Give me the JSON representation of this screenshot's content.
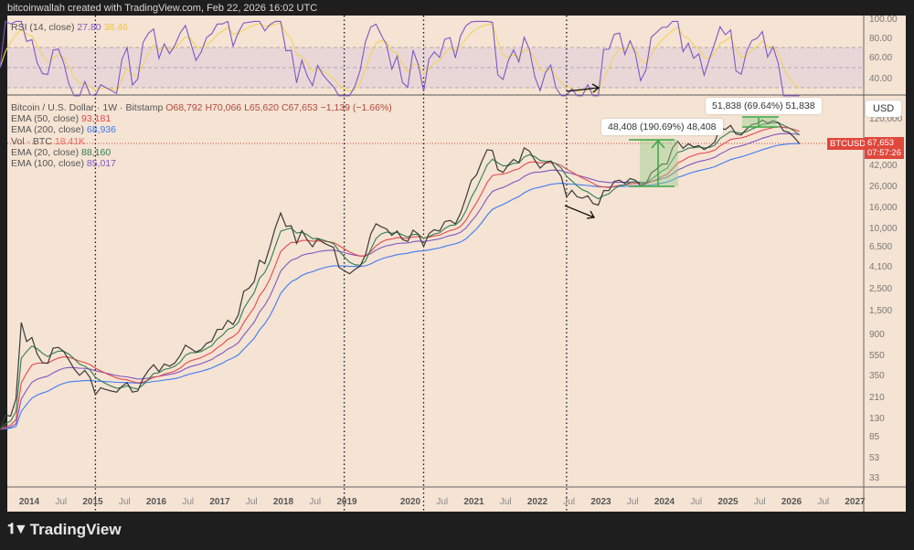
{
  "header": {
    "text": "bitcoinwallah created with TradingView.com, Feb 22, 2026 16:02 UTC"
  },
  "rsi": {
    "label": "RSI (14, close)",
    "value": "27.80",
    "ma_value": "38.46",
    "ticks": [
      "100.00",
      "80.00",
      "60.00",
      "40.00"
    ],
    "colors": {
      "line": "#7e57c2",
      "ma": "#f2d35b"
    }
  },
  "legend": {
    "symbol": "Bitcoin / U.S. Dollar · 1W · Bitstamp",
    "open": "O68,792",
    "high": "H70,066",
    "low": "L65,620",
    "close": "C67,653",
    "change": "−1,139 (−1.66%)",
    "ema50": {
      "label": "EMA (50, close)",
      "value": "93,181",
      "color": "#e5484d"
    },
    "ema200": {
      "label": "EMA (200, close)",
      "value": "68,936",
      "color": "#3d7bf5"
    },
    "vol": {
      "label": "Vol · BTC",
      "value": "18.41K",
      "color": "#ef6b60"
    },
    "ema20": {
      "label": "EMA (20, close)",
      "value": "88,160",
      "color": "#2e7d4f"
    },
    "ema100": {
      "label": "EMA (100, close)",
      "value": "85,017",
      "color": "#7e57c2"
    }
  },
  "price_axis": {
    "currency": "USD",
    "ticks": [
      "120,000",
      "42,000",
      "26,000",
      "16,000",
      "10,000",
      "6,500",
      "4,100",
      "2,500",
      "1,500",
      "900",
      "550",
      "350",
      "210",
      "130",
      "85",
      "53",
      "33"
    ],
    "last": {
      "symbol": "BTCUSD",
      "price": "67,653",
      "countdown": "07:57:26"
    }
  },
  "time_axis": {
    "ticks": [
      "2014",
      "Jul",
      "2015",
      "Jul",
      "2016",
      "Jul",
      "2017",
      "Jul",
      "2018",
      "Jul",
      "2019",
      "2020",
      "Jul",
      "2021",
      "Jul",
      "2022",
      "Jul",
      "2023",
      "Jul",
      "2024",
      "Jul",
      "2025",
      "Jul",
      "2026",
      "Jul",
      "2027"
    ]
  },
  "annotations": {
    "measure1": "48,408 (190.69%) 48,408",
    "measure2": "51,838 (69.64%) 51,838"
  },
  "logo": "TradingView",
  "chart_data": {
    "type": "candlestick",
    "scale": "log",
    "yunits": "USD",
    "ylim": [
      30,
      130000
    ],
    "xlim": [
      "2013-08",
      "2027-03"
    ],
    "closes_by_year": {
      "2013": [
        98,
        135,
        133,
        198,
        1130,
        730
      ],
      "2014": [
        800,
        550,
        450,
        445,
        630,
        640,
        585,
        480,
        390,
        338,
        378,
        320
      ],
      "2015": [
        217,
        254,
        244,
        236,
        230,
        263,
        285,
        230,
        236,
        314,
        377,
        430
      ],
      "2016": [
        368,
        437,
        416,
        448,
        531,
        673,
        624,
        574,
        609,
        700,
        740,
        963
      ],
      "2017": [
        970,
        1190,
        1080,
        1350,
        2300,
        2480,
        2870,
        4700,
        4340,
        6450,
        9950,
        13800
      ],
      "2018": [
        10200,
        10300,
        6900,
        9240,
        7500,
        6390,
        7730,
        7030,
        6630,
        6300,
        4000,
        3700
      ],
      "2019": [
        3440,
        3800,
        4100,
        5300,
        8550,
        10800,
        10100,
        9600,
        8300,
        9150,
        7550,
        7200
      ],
      "2020": [
        9350,
        8550,
        6430,
        8630,
        9450,
        9150,
        11350,
        11650,
        10780,
        13800,
        19700,
        29000
      ],
      "2021": [
        33100,
        45200,
        58800,
        57700,
        37300,
        35000,
        41500,
        47100,
        43800,
        61300,
        57000,
        46300
      ],
      "2022": [
        38500,
        43200,
        45500,
        37700,
        31800,
        19900,
        23300,
        20050,
        19400,
        20500,
        17200,
        16550
      ],
      "2023": [
        23100,
        23150,
        28500,
        29250,
        27200,
        30450,
        29250,
        25950,
        26950,
        34650,
        37700,
        42300
      ],
      "2024": [
        42600,
        61200,
        71300,
        60600,
        67500,
        62700,
        64600,
        58900,
        63300,
        70200,
        96400,
        93400
      ],
      "2025": [
        102400,
        84300,
        82500,
        94200,
        104600,
        107100,
        115700,
        108200,
        114000,
        109500,
        90400,
        87500
      ],
      "2026": [
        78000,
        67653
      ]
    },
    "vertical_markers": [
      "2015-01",
      "2018-12",
      "2020-03",
      "2022-06"
    ]
  }
}
